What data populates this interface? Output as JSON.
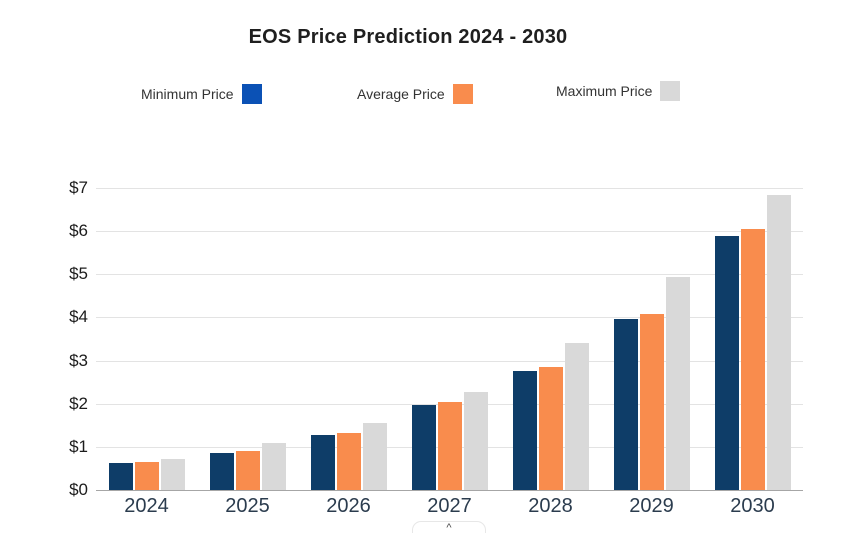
{
  "title": "EOS Price Prediction 2024 - 2030",
  "peek_button": {
    "glyph": "^"
  },
  "colors": {
    "gridline": "#E3E3E3",
    "baseline": "#A6A6A6",
    "title_text": "#1F1F1F",
    "x_label_text": "#2B3C4E",
    "y_label_text": "#1C1C1C",
    "legend_text": "#333333",
    "min_bar": "#0E3D68",
    "avg_bar": "#F98C4D",
    "max_bar": "#D9D9D9",
    "min_legend_swatch": "#0B51B5"
  },
  "chart_data": {
    "type": "bar",
    "title": "EOS Price Prediction 2024 - 2030",
    "categories": [
      "2024",
      "2025",
      "2026",
      "2027",
      "2028",
      "2029",
      "2030"
    ],
    "series": [
      {
        "name": "Minimum Price",
        "color": "#0E3D68",
        "legend_color": "#0B51B5",
        "values": [
          0.62,
          0.87,
          1.28,
          1.98,
          2.77,
          3.97,
          5.88
        ]
      },
      {
        "name": "Average Price",
        "color": "#F98C4D",
        "legend_color": "#F98C4D",
        "values": [
          0.65,
          0.91,
          1.33,
          2.04,
          2.86,
          4.08,
          6.06
        ]
      },
      {
        "name": "Maximum Price",
        "color": "#D9D9D9",
        "legend_color": "#D9D9D9",
        "values": [
          0.73,
          1.1,
          1.56,
          2.28,
          3.41,
          4.94,
          6.85
        ]
      }
    ],
    "y_ticks": [
      {
        "value": 0,
        "label": "$0"
      },
      {
        "value": 1,
        "label": "$1"
      },
      {
        "value": 2,
        "label": "$2"
      },
      {
        "value": 3,
        "label": "$3"
      },
      {
        "value": 4,
        "label": "$4"
      },
      {
        "value": 5,
        "label": "$5"
      },
      {
        "value": 6,
        "label": "$6"
      },
      {
        "value": 7,
        "label": "$7"
      }
    ],
    "ylim": [
      0,
      7
    ],
    "grid": true,
    "legend_position": "top",
    "xlabel": "",
    "ylabel": ""
  }
}
